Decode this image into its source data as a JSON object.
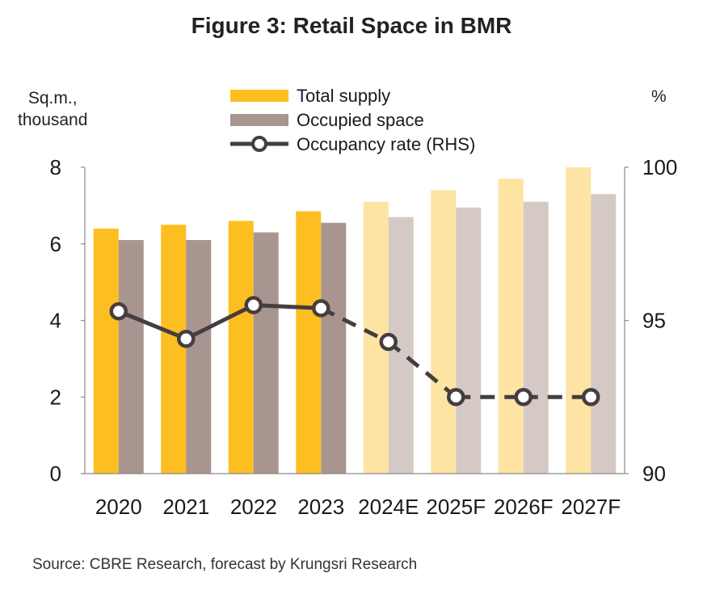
{
  "chart_data": {
    "type": "bar",
    "title": "Figure 3: Retail Space in BMR",
    "ylabel": "Sq.m., thousand",
    "y2label": "%",
    "categories": [
      "2020",
      "2021",
      "2022",
      "2023",
      "2024E",
      "2025F",
      "2026F",
      "2027F"
    ],
    "forecast_start_index": 4,
    "ylim": [
      0,
      8
    ],
    "yticks": [
      0,
      2,
      4,
      6,
      8
    ],
    "y2lim": [
      90,
      100
    ],
    "y2ticks": [
      90,
      95,
      100
    ],
    "series": [
      {
        "name": "Total supply",
        "type": "bar",
        "axis": "left",
        "color": "#FDBE21",
        "forecast_color": "#FEE4A3",
        "values": [
          6.4,
          6.5,
          6.6,
          6.85,
          7.1,
          7.4,
          7.7,
          8.0
        ]
      },
      {
        "name": "Occupied space",
        "type": "bar",
        "axis": "left",
        "color": "#A8958F",
        "forecast_color": "#D5C9C6",
        "values": [
          6.1,
          6.1,
          6.3,
          6.55,
          6.7,
          6.95,
          7.1,
          7.3
        ]
      },
      {
        "name": "Occupancy rate (RHS)",
        "type": "line",
        "axis": "right",
        "color": "#453D3F",
        "values": [
          95.3,
          94.4,
          95.5,
          95.4,
          94.3,
          92.5,
          92.5,
          92.5
        ]
      }
    ],
    "legend": "top-center",
    "grid": false
  },
  "axis_labels": {
    "left_line1": "Sq.m.,",
    "left_line2": "thousand",
    "right": "%"
  },
  "source": "Source: CBRE Research, forecast by Krungsri Research"
}
